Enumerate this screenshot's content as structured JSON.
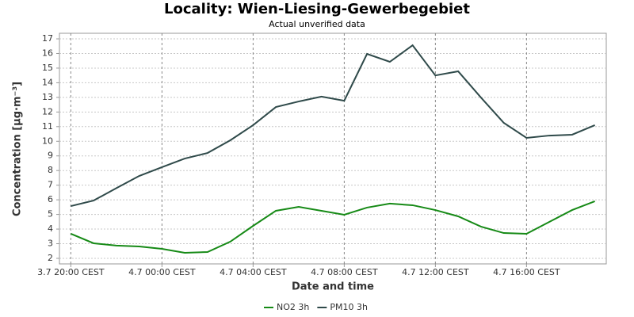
{
  "chart_data": {
    "type": "line",
    "title": "Locality: Wien-Liesing-Gewerbegebiet",
    "subtitle": "Actual unverified data",
    "x_label": "Date and time",
    "y_label": "Concentration [µg·m⁻³]",
    "categories": [
      "3.7 20:00 CEST",
      null,
      null,
      null,
      "4.7 00:00 CEST",
      null,
      null,
      null,
      "4.7 04:00 CEST",
      null,
      null,
      null,
      "4.7 08:00 CEST",
      null,
      null,
      null,
      "4.7 12:00 CEST",
      null,
      null,
      null,
      "4.7 16:00 CEST",
      null,
      null,
      null
    ],
    "series": [
      {
        "name": "NO2 3h",
        "color": "#168a16",
        "values": [
          3.68,
          3.03,
          2.87,
          2.81,
          2.65,
          2.38,
          2.43,
          3.14,
          4.22,
          5.25,
          5.52,
          5.25,
          4.98,
          5.47,
          5.74,
          5.63,
          5.3,
          4.87,
          4.17,
          3.73,
          3.68,
          4.49,
          5.3,
          5.9
        ]
      },
      {
        "name": "PM10 3h",
        "color": "#2f4a4a",
        "values": [
          5.57,
          5.95,
          6.8,
          7.63,
          8.23,
          8.82,
          9.2,
          10.07,
          11.1,
          12.34,
          12.72,
          13.05,
          12.77,
          15.97,
          15.43,
          16.56,
          14.5,
          14.78,
          12.99,
          11.26,
          10.23,
          10.39,
          10.45,
          11.1
        ]
      }
    ],
    "ylim": [
      1.62,
      17.38
    ],
    "yticks": [
      2,
      3,
      4,
      5,
      6,
      7,
      8,
      9,
      10,
      11,
      12,
      13,
      14,
      15,
      16,
      17
    ],
    "grid": true,
    "legend": "bottom"
  }
}
